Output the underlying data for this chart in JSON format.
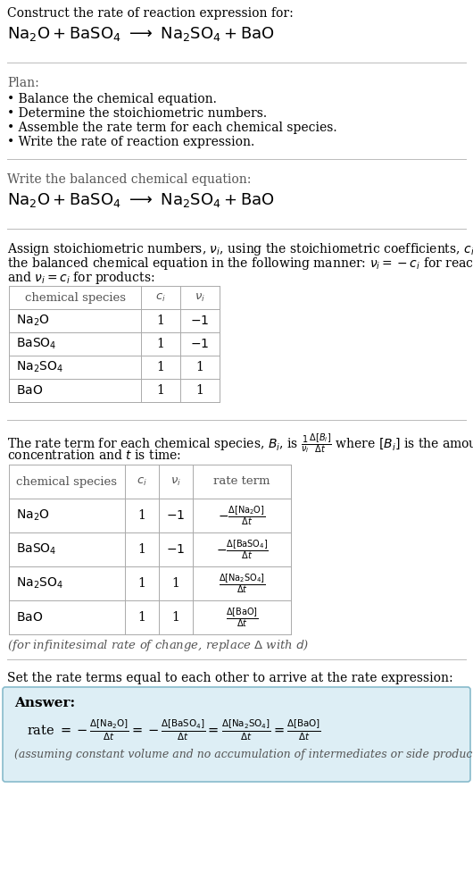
{
  "bg_color": "#ffffff",
  "text_color": "#000000",
  "divider_color": "#cccccc",
  "answer_bg": "#ddeef5",
  "answer_border": "#99bbcc",
  "section1_line1": "Construct the rate of reaction expression for:",
  "section1_eq": "$\\mathrm{Na_2O + BaSO_4 \\ \\longrightarrow \\ Na_2SO_4 + BaO}$",
  "plan_title": "Plan:",
  "plan_items": [
    "\\u2022 Balance the chemical equation.",
    "\\u2022 Determine the stoichiometric numbers.",
    "\\u2022 Assemble the rate term for each chemical species.",
    "\\u2022 Write the rate of reaction expression."
  ],
  "balanced_title": "Write the balanced chemical equation:",
  "balanced_eq": "$\\mathrm{Na_2O + BaSO_4 \\ \\longrightarrow \\ Na_2SO_4 + BaO}$",
  "stoich_line1": "Assign stoichiometric numbers, $\\nu_i$, using the stoichiometric coefficients, $c_i$, from",
  "stoich_line2": "the balanced chemical equation in the following manner: $\\nu_i = -c_i$ for reactants",
  "stoich_line3": "and $\\nu_i = c_i$ for products:",
  "rate_line1": "The rate term for each chemical species, $B_i$, is $\\frac{1}{\\nu_i}\\frac{\\Delta[B_i]}{\\Delta t}$ where $[B_i]$ is the amount",
  "rate_line2": "concentration and $t$ is time:",
  "infinitesimal": "(for infinitesimal rate of change, replace $\\Delta$ with $d$)",
  "set_equal": "Set the rate terms equal to each other to arrive at the rate expression:",
  "answer_label": "Answer:",
  "assuming": "(assuming constant volume and no accumulation of intermediates or side products)"
}
